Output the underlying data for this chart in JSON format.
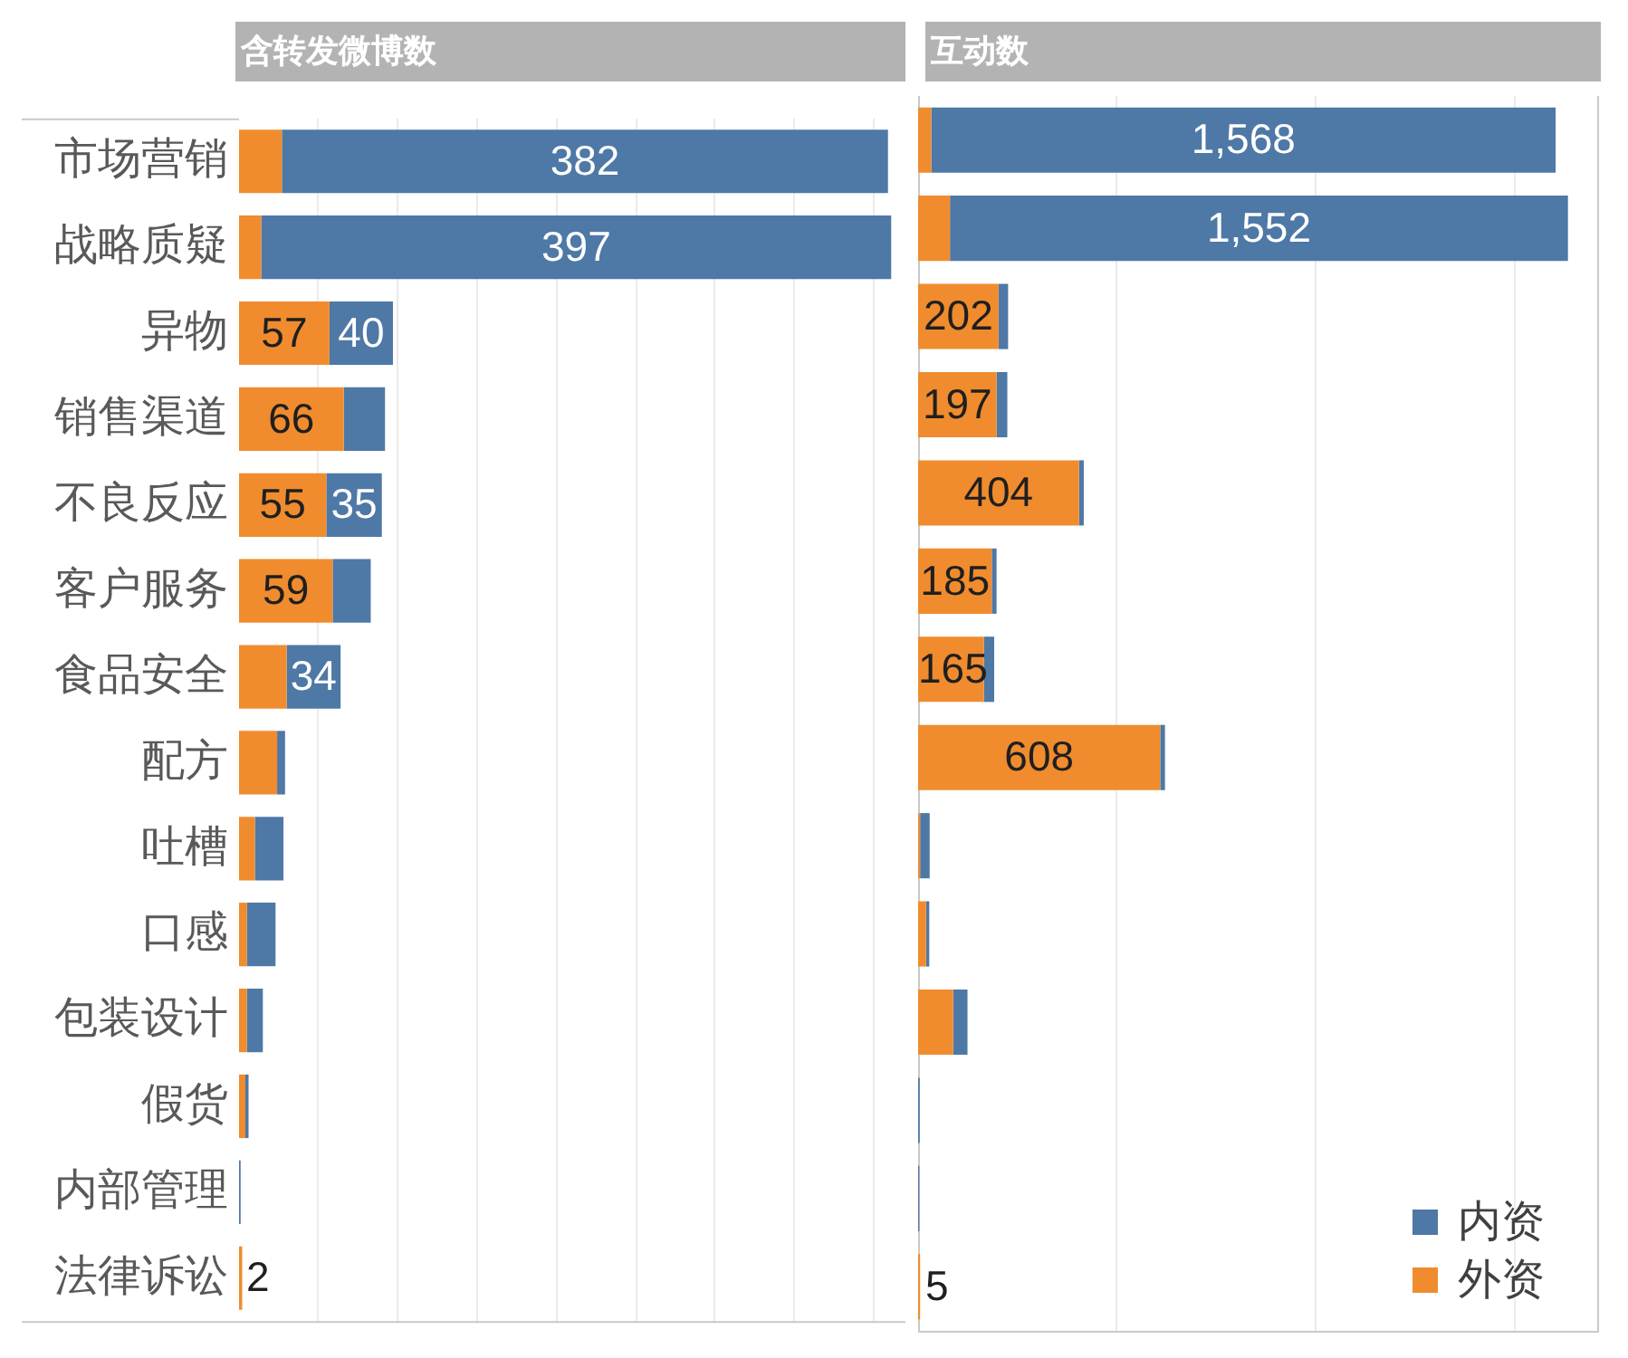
{
  "chart_data": [
    {
      "type": "bar",
      "title": "含转发微博数",
      "orientation": "horizontal",
      "stacked": true,
      "categories": [
        "市场营销",
        "战略质疑",
        "异物",
        "销售渠道",
        "不良反应",
        "客户服务",
        "食品安全",
        "配方",
        "吐槽",
        "口感",
        "包装设计",
        "假货",
        "内部管理",
        "法律诉讼"
      ],
      "series": [
        {
          "color": "#f08c2e",
          "values": [
            27,
            14,
            57,
            66,
            55,
            59,
            30,
            24,
            10,
            5,
            5,
            4,
            0,
            2
          ],
          "value_labels": [
            null,
            null,
            "57",
            "66",
            "55",
            "59",
            null,
            null,
            null,
            null,
            null,
            null,
            null,
            "2"
          ]
        },
        {
          "color": "#4e78a6",
          "values": [
            382,
            397,
            40,
            26,
            35,
            24,
            34,
            5,
            18,
            18,
            10,
            2,
            1,
            0
          ],
          "value_labels": [
            "382",
            "397",
            "40",
            null,
            "35",
            null,
            "34",
            null,
            null,
            null,
            null,
            null,
            null,
            null
          ]
        }
      ],
      "xlim": [
        0,
        420
      ],
      "xticks": [
        {
          "value": 50,
          "label": null
        },
        {
          "value": 100,
          "label": null
        },
        {
          "value": 150,
          "label": null
        },
        {
          "value": 200,
          "label": null
        },
        {
          "value": 250,
          "label": null
        },
        {
          "value": 300,
          "label": null
        },
        {
          "value": 350,
          "label": null
        },
        {
          "value": 400,
          "label": null
        }
      ],
      "grid": "x",
      "tick_labels": "y"
    },
    {
      "type": "bar",
      "title": "互动数",
      "orientation": "horizontal",
      "stacked": true,
      "categories": [
        "市场营销",
        "战略质疑",
        "异物",
        "销售渠道",
        "不良反应",
        "客户服务",
        "食品安全",
        "配方",
        "吐槽",
        "口感",
        "包装设计",
        "假货",
        "内部管理",
        "法律诉讼"
      ],
      "series": [
        {
          "name": "外资",
          "color": "#f08c2e",
          "values": [
            33,
            80,
            202,
            197,
            404,
            185,
            165,
            608,
            5,
            20,
            88,
            0,
            0,
            5
          ],
          "value_labels": [
            null,
            null,
            "202",
            "197",
            "404",
            "185",
            "165",
            "608",
            null,
            null,
            null,
            null,
            null,
            "5"
          ]
        },
        {
          "name": "内资",
          "color": "#4e78a6",
          "values": [
            1568,
            1552,
            24,
            27,
            12,
            12,
            26,
            12,
            24,
            8,
            36,
            4,
            3,
            0
          ],
          "value_labels": [
            "1,568",
            "1,552",
            null,
            null,
            null,
            null,
            null,
            null,
            null,
            null,
            null,
            null,
            null,
            null
          ]
        }
      ],
      "xlim": [
        0,
        1710
      ],
      "xticks": [
        {
          "value": 500,
          "label": null
        },
        {
          "value": 1000,
          "label": null
        },
        {
          "value": 1500,
          "label": null
        }
      ],
      "grid": "x",
      "tick_labels": false,
      "legend": "bottom right"
    }
  ]
}
